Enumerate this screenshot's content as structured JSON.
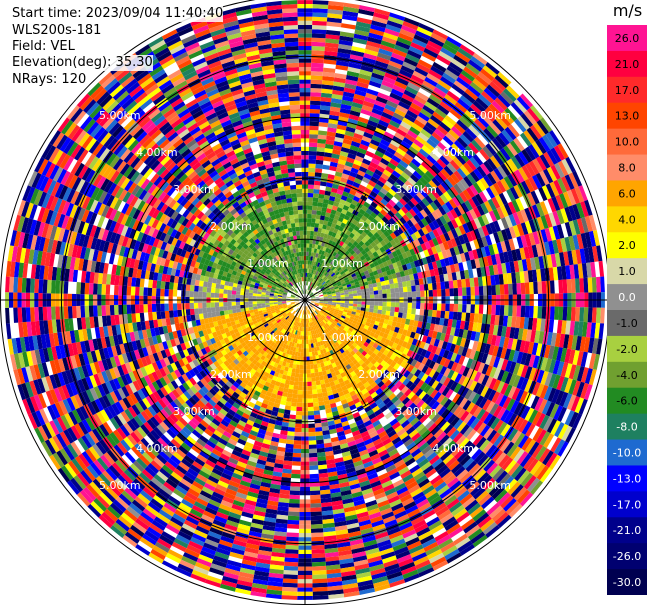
{
  "info": {
    "start_time": "Start time: 2023/09/04 11:40:40",
    "instrument": "WLS200s-181",
    "field": "Field: VEL",
    "elevation": "Elevation(deg): 35.30",
    "nrays": "NRays: 120"
  },
  "colorbar": {
    "unit": "m/s",
    "ticks": [
      "26.0",
      "21.0",
      "17.0",
      "13.0",
      "10.0",
      "8.0",
      "6.0",
      "4.0",
      "2.0",
      "1.0",
      "0.0",
      "-1.0",
      "-2.0",
      "-4.0",
      "-6.0",
      "-8.0",
      "-10.0",
      "-13.0",
      "-17.0",
      "-21.0",
      "-26.0",
      "-30.0"
    ],
    "colors": [
      "#ff1493",
      "#ff0040",
      "#ff2a2a",
      "#ff4500",
      "#ff6a3a",
      "#ff8c69",
      "#ffa500",
      "#ffd700",
      "#ffff00",
      "#d8d8a8",
      "#909090",
      "#6a6a6a",
      "#a8d040",
      "#70a030",
      "#228b22",
      "#1e8060",
      "#1e6ad0",
      "#0000ff",
      "#0000cd",
      "#00008b",
      "#000070",
      "#000050"
    ]
  },
  "chart_data": {
    "type": "heatmap",
    "projection": "polar-ppi",
    "field": "VEL",
    "units": "m/s",
    "nrays": 120,
    "elevation_deg": 35.3,
    "range_ring_labels": [
      "1.00km",
      "2.00km",
      "3.00km",
      "4.00km",
      "5.00km"
    ],
    "range_rings_km": [
      1,
      2,
      3,
      4,
      5
    ],
    "max_range_km": 6.4,
    "value_range": [
      -30,
      26
    ],
    "regions": [
      {
        "area": "north, within ~2.5 km",
        "velocity_approx": -4
      },
      {
        "area": "south, within ~2.5 km",
        "velocity_approx": 6
      },
      {
        "area": "east/west near center",
        "velocity_approx": 0
      },
      {
        "area": "beyond ~2.5 km",
        "velocity_approx": "noise"
      }
    ]
  }
}
